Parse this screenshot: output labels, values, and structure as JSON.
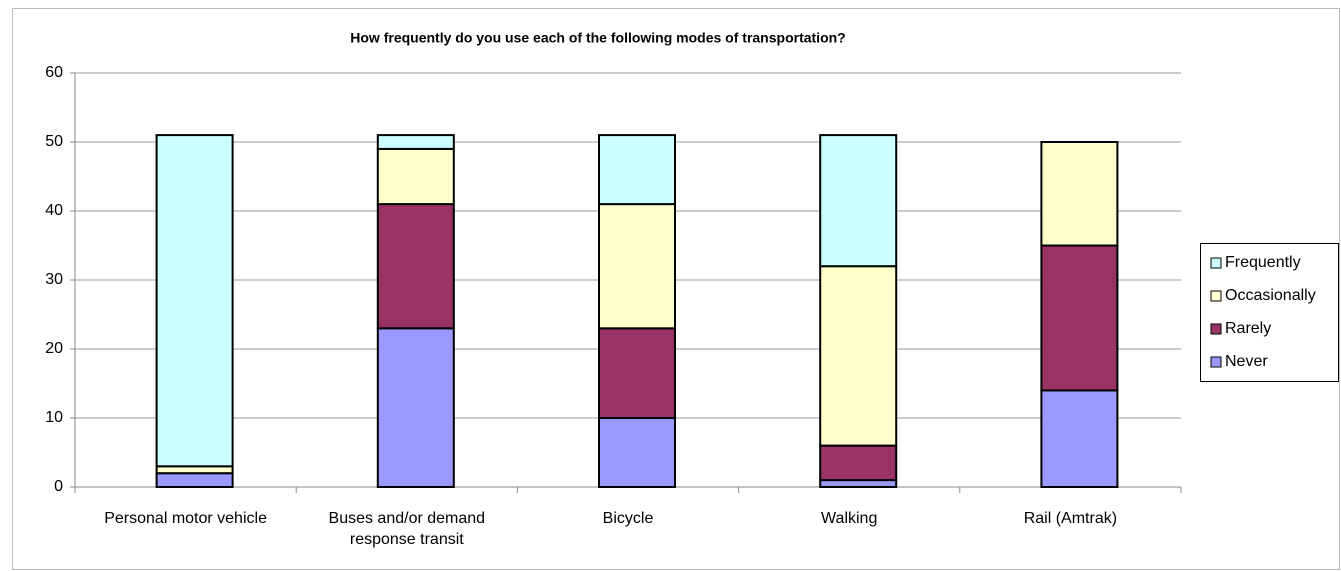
{
  "chart_data": {
    "type": "bar",
    "stacked": true,
    "title": "How frequently do you use each of the following modes of transportation?",
    "categories": [
      "Personal motor vehicle",
      "Buses and/or demand response transit",
      "Bicycle",
      "Walking",
      "Rail (Amtrak)"
    ],
    "series": [
      {
        "name": "Never",
        "color": "#9999ff",
        "values": [
          2,
          23,
          10,
          1,
          14
        ]
      },
      {
        "name": "Rarely",
        "color": "#993366",
        "values": [
          0,
          18,
          13,
          5,
          21
        ]
      },
      {
        "name": "Occasionally",
        "color": "#ffffcc",
        "values": [
          1,
          8,
          18,
          26,
          15
        ]
      },
      {
        "name": "Frequently",
        "color": "#ccffff",
        "values": [
          48,
          2,
          10,
          19,
          0
        ]
      }
    ],
    "ylim": [
      0,
      60
    ],
    "yticks": [
      0,
      10,
      20,
      30,
      40,
      50,
      60
    ],
    "grid": true,
    "legend": "right"
  }
}
